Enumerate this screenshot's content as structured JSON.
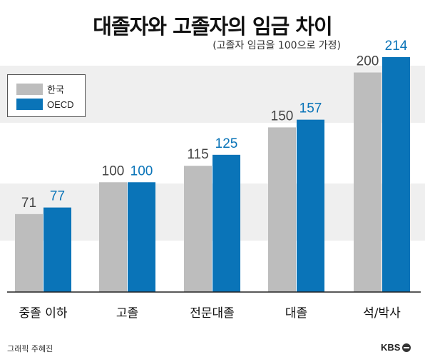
{
  "title": "대졸자와 고졸자의 임금 차이",
  "subtitle": "(고졸자 임금을 100으로 가정)",
  "chart_data": {
    "type": "bar",
    "title": "대졸자와 고졸자의 임금 차이",
    "subtitle": "(고졸자 임금을 100으로 가정)",
    "categories": [
      "중졸 이하",
      "고졸",
      "전문대졸",
      "대졸",
      "석/박사"
    ],
    "series": [
      {
        "name": "한국",
        "values": [
          71,
          100,
          115,
          150,
          200
        ],
        "color": "#bdbdbd",
        "label_color": "#444444"
      },
      {
        "name": "OECD",
        "values": [
          77,
          100,
          125,
          157,
          214
        ],
        "color": "#0a74b8",
        "label_color": "#0a74b8"
      }
    ],
    "ylim": [
      0,
      214
    ],
    "legend_position": "top-left",
    "grid": false
  },
  "footer": {
    "credit": "그래픽 주혜진",
    "logo": "KBS"
  }
}
